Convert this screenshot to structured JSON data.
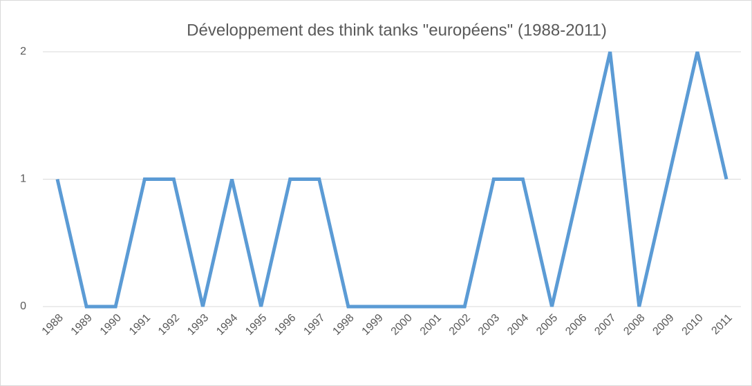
{
  "chart_data": {
    "type": "line",
    "title": "Développement des think tanks \"européens\" (1988-2011)",
    "categories": [
      "1988",
      "1989",
      "1990",
      "1991",
      "1992",
      "1993",
      "1994",
      "1995",
      "1996",
      "1997",
      "1998",
      "1999",
      "2000",
      "2001",
      "2002",
      "2003",
      "2004",
      "2005",
      "2006",
      "2007",
      "2008",
      "2009",
      "2010",
      "2011"
    ],
    "values": [
      1,
      0,
      0,
      1,
      1,
      0,
      1,
      0,
      1,
      1,
      0,
      0,
      0,
      0,
      0,
      1,
      1,
      0,
      1,
      2,
      0,
      1,
      2,
      1
    ],
    "color": "#5b9bd5",
    "ylim": [
      0,
      2
    ],
    "yticks": [
      0,
      1,
      2
    ],
    "grid": true
  }
}
